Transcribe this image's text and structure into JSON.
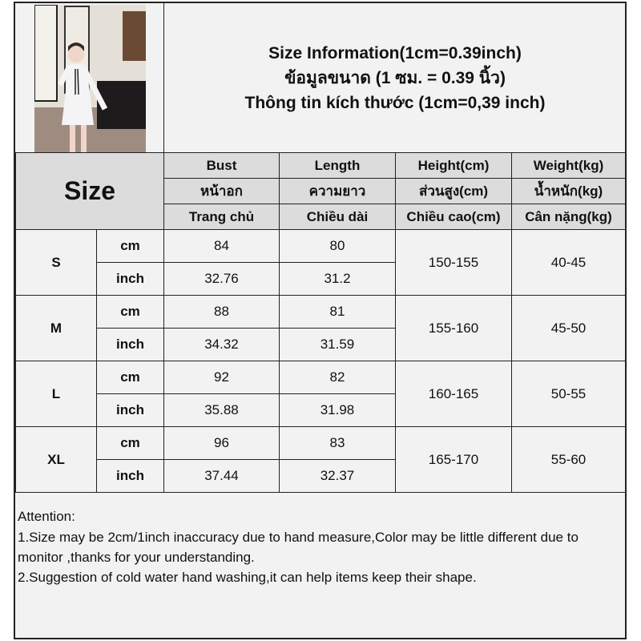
{
  "title_lines": [
    "Size Information(1cm=0.39inch)",
    "ข้อมูลขนาด (1 ซม. = 0.39 นิ้ว)",
    "Thông tin kích thước (1cm=0,39 inch)"
  ],
  "size_header": "Size",
  "columns": [
    {
      "en": "Bust",
      "th": "หน้าอก",
      "vi": "Trang chủ"
    },
    {
      "en": "Length",
      "th": "ความยาว",
      "vi": "Chiều dài"
    },
    {
      "en": "Height(cm)",
      "th": "ส่วนสูง(cm)",
      "vi": "Chiều cao(cm)"
    },
    {
      "en": "Weight(kg)",
      "th": "น้ำหนัก(kg)",
      "vi": "Cân nặng(kg)"
    }
  ],
  "rows": [
    {
      "size": "S",
      "cm_label": "cm",
      "inch_label": "inch",
      "bust_cm": "84",
      "length_cm": "80",
      "bust_inch": "32.76",
      "length_inch": "31.2",
      "height": "150-155",
      "weight": "40-45"
    },
    {
      "size": "M",
      "cm_label": "cm",
      "inch_label": "inch",
      "bust_cm": "88",
      "length_cm": "81",
      "bust_inch": "34.32",
      "length_inch": "31.59",
      "height": "155-160",
      "weight": "45-50"
    },
    {
      "size": "L",
      "cm_label": "cm",
      "inch_label": "inch",
      "bust_cm": "92",
      "length_cm": "82",
      "bust_inch": "35.88",
      "length_inch": "31.98",
      "height": "160-165",
      "weight": "50-55"
    },
    {
      "size": "XL",
      "cm_label": "cm",
      "inch_label": "inch",
      "bust_cm": "96",
      "length_cm": "83",
      "bust_inch": "37.44",
      "length_inch": "32.37",
      "height": "165-170",
      "weight": "55-60"
    }
  ],
  "attention": {
    "heading": "Attention:",
    "line1": "1.Size may be 2cm/1inch inaccuracy due to hand measure,Color may be little different due to monitor ,thanks for your understanding.",
    "line2": "2.Suggestion of cold water hand washing,it can help items keep their shape."
  }
}
